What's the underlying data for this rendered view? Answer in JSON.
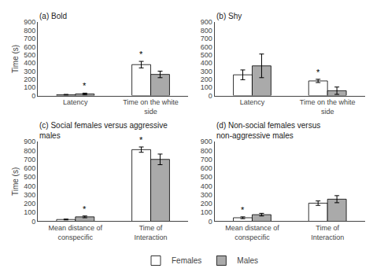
{
  "chart_data": [
    {
      "type": "bar",
      "title": "(a) Bold",
      "categories": [
        "Latency",
        "Time on the white side"
      ],
      "series": [
        {
          "name": "Females",
          "color": "#ffffff",
          "values": [
            10,
            380
          ],
          "errors": [
            5,
            40
          ]
        },
        {
          "name": "Males",
          "color": "#aaaaaa",
          "values": [
            20,
            260
          ],
          "errors": [
            10,
            40
          ]
        }
      ],
      "ylim": [
        0,
        900
      ],
      "yticks": [
        0,
        100,
        200,
        300,
        400,
        500,
        600,
        700,
        800,
        900
      ],
      "ylabel": "Time (s)",
      "grid": false,
      "legend": "bottom",
      "annotations": [
        {
          "text": "*",
          "category": "Latency",
          "series": "Males"
        },
        {
          "text": "*",
          "category": "Time on the white side",
          "series": "Females"
        }
      ]
    },
    {
      "type": "bar",
      "title": "(b) Shy",
      "categories": [
        "Latency",
        "Time on the white side"
      ],
      "series": [
        {
          "name": "Females",
          "color": "#ffffff",
          "values": [
            255,
            180
          ],
          "errors": [
            60,
            20
          ]
        },
        {
          "name": "Males",
          "color": "#aaaaaa",
          "values": [
            365,
            60
          ],
          "errors": [
            145,
            45
          ]
        }
      ],
      "ylim": [
        0,
        900
      ],
      "yticks": [
        0,
        100,
        200,
        300,
        400,
        500,
        600,
        700,
        800,
        900
      ],
      "grid": false,
      "annotations": [
        {
          "text": "*",
          "category": "Time on the white side",
          "series": "Females"
        }
      ]
    },
    {
      "type": "bar",
      "title": "(c) Social females versus aggressive males",
      "categories": [
        "Mean distance of conspecific",
        "Time of Interaction"
      ],
      "series": [
        {
          "name": "Females",
          "color": "#ffffff",
          "values": [
            20,
            810
          ],
          "errors": [
            5,
            30
          ]
        },
        {
          "name": "Males",
          "color": "#aaaaaa",
          "values": [
            50,
            700
          ],
          "errors": [
            10,
            60
          ]
        }
      ],
      "ylim": [
        0,
        900
      ],
      "yticks": [
        0,
        100,
        200,
        300,
        400,
        500,
        600,
        700,
        800,
        900
      ],
      "ylabel": "Time (s)",
      "grid": false,
      "annotations": [
        {
          "text": "*",
          "category": "Mean distance of conspecific",
          "series": "Males"
        },
        {
          "text": "*",
          "category": "Time of Interaction",
          "series": "Females"
        }
      ]
    },
    {
      "type": "bar",
      "title": "(d) Non-social females versus non-aggressive males",
      "categories": [
        "Mean distance of conspecific",
        "Time of Interaction"
      ],
      "series": [
        {
          "name": "Females",
          "color": "#ffffff",
          "values": [
            40,
            205
          ],
          "errors": [
            10,
            25
          ]
        },
        {
          "name": "Males",
          "color": "#aaaaaa",
          "values": [
            75,
            250
          ],
          "errors": [
            15,
            40
          ]
        }
      ],
      "ylim": [
        0,
        900
      ],
      "yticks": [
        0,
        100,
        200,
        300,
        400,
        500,
        600,
        700,
        800,
        900
      ],
      "grid": false,
      "annotations": [
        {
          "text": "*",
          "category": "Mean distance of conspecific",
          "series": "Females"
        }
      ]
    }
  ]
}
